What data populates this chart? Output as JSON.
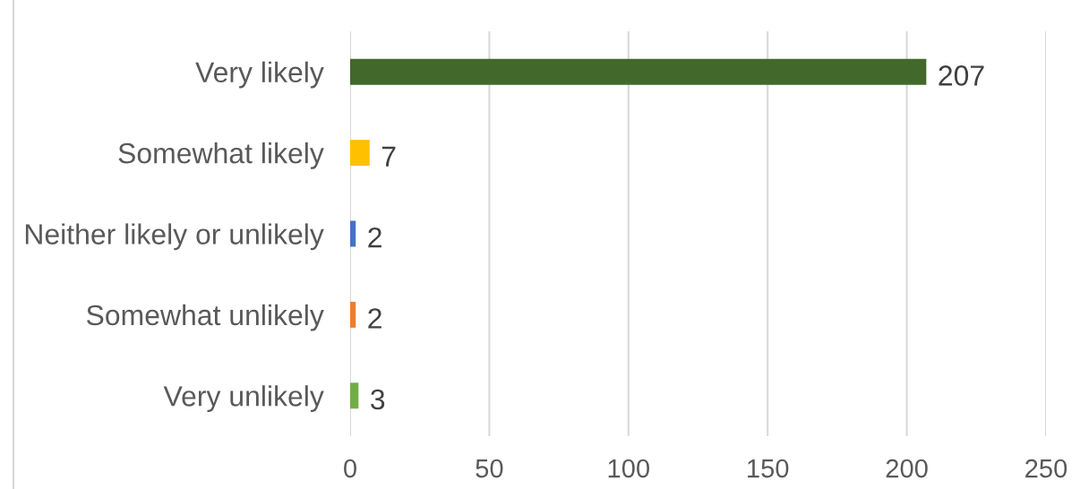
{
  "chart_data": {
    "type": "bar",
    "orientation": "horizontal",
    "categories": [
      "Very likely",
      "Somewhat likely",
      "Neither likely or unlikely",
      "Somewhat unlikely",
      "Very unlikely"
    ],
    "values": [
      207,
      7,
      2,
      2,
      3
    ],
    "colors": [
      "#43682b",
      "#ffc000",
      "#4472c4",
      "#ed7d31",
      "#70ad47"
    ],
    "xlim": [
      0,
      250
    ],
    "xticks": [
      0,
      50,
      100,
      150,
      200,
      250
    ],
    "grid": "x",
    "data_labels": true
  }
}
